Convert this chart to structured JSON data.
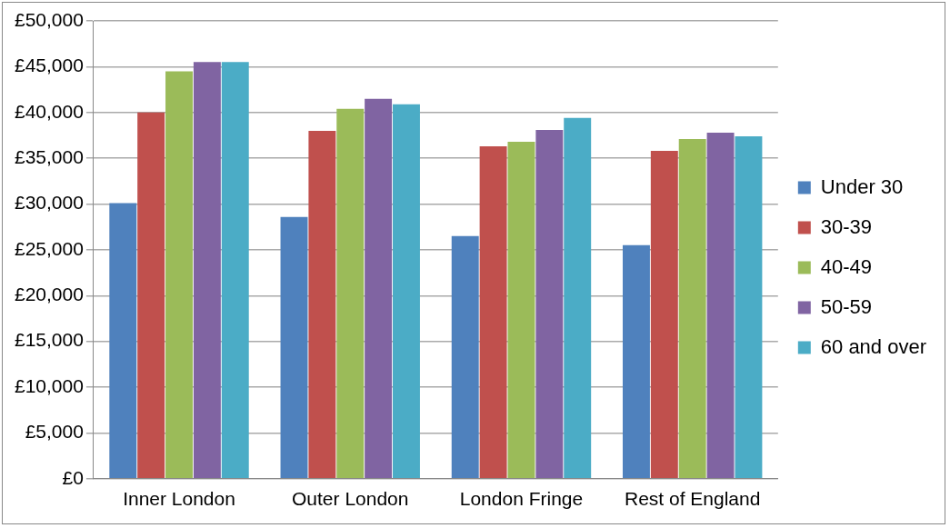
{
  "chart_data": {
    "type": "bar",
    "categories": [
      "Inner London",
      "Outer London",
      "London Fringe",
      "Rest of England"
    ],
    "series": [
      {
        "name": "Under 30",
        "color": "#4f81bd",
        "values": [
          30100,
          28600,
          26500,
          25500
        ]
      },
      {
        "name": "30-39",
        "color": "#c0504d",
        "values": [
          40000,
          38000,
          36300,
          35800
        ]
      },
      {
        "name": "40-49",
        "color": "#9bbb59",
        "values": [
          44500,
          40400,
          36800,
          37100
        ]
      },
      {
        "name": "50-59",
        "color": "#8064a2",
        "values": [
          45500,
          41500,
          38100,
          37800
        ]
      },
      {
        "name": "60 and over",
        "color": "#4bacc6",
        "values": [
          45500,
          40900,
          39400,
          37400
        ]
      }
    ],
    "ylim": [
      0,
      50000
    ],
    "yticks": [
      {
        "value": 0,
        "label": "£0"
      },
      {
        "value": 5000,
        "label": "£5,000"
      },
      {
        "value": 10000,
        "label": "£10,000"
      },
      {
        "value": 15000,
        "label": "£15,000"
      },
      {
        "value": 20000,
        "label": "£20,000"
      },
      {
        "value": 25000,
        "label": "£25,000"
      },
      {
        "value": 30000,
        "label": "£30,000"
      },
      {
        "value": 35000,
        "label": "£35,000"
      },
      {
        "value": 40000,
        "label": "£40,000"
      },
      {
        "value": 45000,
        "label": "£45,000"
      },
      {
        "value": 50000,
        "label": "£50,000"
      }
    ],
    "grid": "y",
    "legend": "right"
  }
}
